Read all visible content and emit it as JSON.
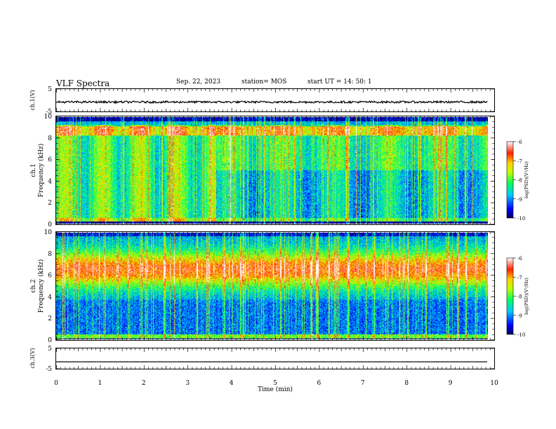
{
  "header": {
    "title": "VLF Spectra",
    "date": "Sep. 22, 2023",
    "station": "station= MOS",
    "start": "start  UT =   14: 50: 1"
  },
  "chart_data": [
    {
      "panel": "ch1-voltage",
      "type": "line",
      "ylabel": "ch.1(V)",
      "ylim": [
        -5,
        5
      ],
      "yticks": [
        "5",
        "-5"
      ],
      "xlim": [
        0,
        10
      ],
      "series": [
        {
          "approx_value": -0.8
        }
      ]
    },
    {
      "panel": "ch1-spectrogram",
      "type": "heatmap",
      "ylabel": "ch.1\nFrequency (kHz)",
      "ylim": [
        0,
        10
      ],
      "yticks": [
        "0",
        "2",
        "4",
        "6",
        "8",
        "10"
      ],
      "xlim": [
        0,
        10
      ],
      "colorbar": {
        "label": "log(PSD)(V²/Hz)",
        "range": [
          -10,
          -6
        ],
        "ticks": [
          "-6",
          "-7",
          "-8",
          "-9",
          "-10"
        ]
      }
    },
    {
      "panel": "ch2-spectrogram",
      "type": "heatmap",
      "ylabel": "ch.2\nFrequency (kHz)",
      "ylim": [
        0,
        10
      ],
      "yticks": [
        "0",
        "2",
        "4",
        "6",
        "8",
        "10"
      ],
      "xlim": [
        0,
        10
      ],
      "colorbar": {
        "label": "log(PSD)(V²/Hz)",
        "range": [
          -10,
          -6
        ],
        "ticks": [
          "-6",
          "-7",
          "-8",
          "-9",
          "-10"
        ]
      }
    },
    {
      "panel": "ch3-voltage",
      "type": "line",
      "ylabel": "ch.3(V)",
      "ylim": [
        -5,
        5
      ],
      "yticks": [
        "5",
        "-5"
      ],
      "xlim": [
        0,
        10
      ],
      "series": [
        {
          "approx_value": -1.6
        }
      ]
    }
  ],
  "xaxis": {
    "label": "Time  (min)",
    "ticks": [
      "0",
      "1",
      "2",
      "3",
      "4",
      "5",
      "6",
      "7",
      "8",
      "9",
      "10"
    ],
    "data_end_min": 9.85
  },
  "colors": {
    "colormap": [
      "#000080",
      "#0000ff",
      "#00c8ff",
      "#00ff80",
      "#80ff00",
      "#ffff00",
      "#ffa000",
      "#ff0000",
      "#ffffff"
    ]
  }
}
